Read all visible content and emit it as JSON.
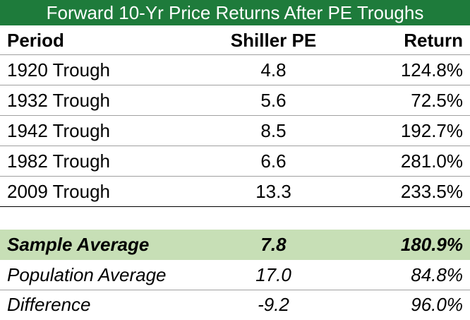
{
  "title": "Forward 10-Yr Price Returns After PE Troughs",
  "columns": {
    "period": "Period",
    "pe": "Shiller PE",
    "return": "Return"
  },
  "rows": [
    {
      "period": "1920 Trough",
      "pe": "4.8",
      "return": "124.8%"
    },
    {
      "period": "1932 Trough",
      "pe": "5.6",
      "return": "72.5%"
    },
    {
      "period": "1942 Trough",
      "pe": "8.5",
      "return": "192.7%"
    },
    {
      "period": "1982 Trough",
      "pe": "6.6",
      "return": "281.0%"
    },
    {
      "period": "2009 Trough",
      "pe": "13.3",
      "return": "233.5%"
    }
  ],
  "summary": [
    {
      "period": "Sample Average",
      "pe": "7.8",
      "return": "180.9%"
    },
    {
      "period": "Population Average",
      "pe": "17.0",
      "return": "84.8%"
    },
    {
      "period": "Difference",
      "pe": "-9.2",
      "return": "96.0%"
    }
  ],
  "colors": {
    "title_bg": "#1e7b3b",
    "title_fg": "#ffffff",
    "highlight_bg": "#c7dfb6"
  }
}
